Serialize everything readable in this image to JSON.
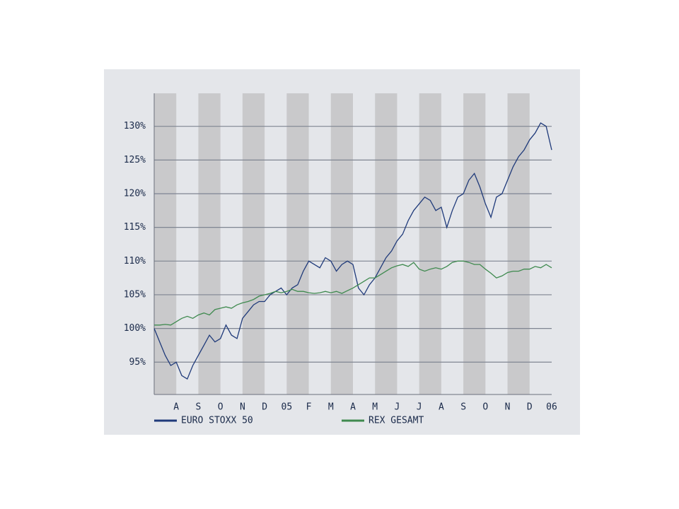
{
  "chart_data": {
    "type": "line",
    "categories": [
      null,
      null,
      null,
      null,
      "A",
      null,
      null,
      null,
      "S",
      null,
      null,
      null,
      "O",
      null,
      null,
      null,
      "N",
      null,
      null,
      null,
      "D",
      null,
      null,
      null,
      "05",
      null,
      null,
      null,
      "F",
      null,
      null,
      null,
      "M",
      null,
      null,
      null,
      "A",
      null,
      null,
      null,
      "M",
      null,
      null,
      null,
      "J",
      null,
      null,
      null,
      "J",
      null,
      null,
      null,
      "A",
      null,
      null,
      null,
      "S",
      null,
      null,
      null,
      "O",
      null,
      null,
      null,
      "N",
      null,
      null,
      null,
      "D",
      null,
      null,
      null,
      "06"
    ],
    "series": [
      {
        "name": "EURO STOXX 50",
        "color": "#1f3a7a",
        "values": [
          100,
          98,
          96,
          94.5,
          95,
          93,
          92.5,
          94.5,
          96,
          97.5,
          99,
          98,
          98.5,
          100.5,
          99,
          98.5,
          101.5,
          102.5,
          103.5,
          104,
          104,
          105,
          105.5,
          106,
          105,
          106,
          106.5,
          108.5,
          110,
          109.5,
          109,
          110.5,
          110,
          108.5,
          109.5,
          110,
          109.5,
          106,
          105,
          106.5,
          107.5,
          109,
          110.5,
          111.5,
          113,
          114,
          116,
          117.5,
          118.5,
          119.5,
          119,
          117.5,
          118,
          115,
          117.5,
          119.5,
          120,
          122,
          123,
          121,
          118.5,
          116.5,
          119.5,
          120,
          122,
          124,
          125.5,
          126.5,
          128,
          129,
          130.5,
          130,
          126.5
        ]
      },
      {
        "name": "REX GESAMT",
        "color": "#3f8a4f",
        "values": [
          100.5,
          100.5,
          100.6,
          100.5,
          101,
          101.5,
          101.8,
          101.5,
          102,
          102.3,
          102,
          102.8,
          103,
          103.2,
          103,
          103.5,
          103.8,
          104,
          104.3,
          104.8,
          105,
          105.2,
          105.5,
          105.3,
          105.5,
          105.8,
          105.5,
          105.5,
          105.3,
          105.2,
          105.3,
          105.5,
          105.3,
          105.5,
          105.2,
          105.6,
          106,
          106.5,
          107,
          107.5,
          107.5,
          108,
          108.5,
          109,
          109.3,
          109.5,
          109.2,
          109.8,
          108.8,
          108.5,
          108.8,
          109,
          108.8,
          109.2,
          109.8,
          110,
          110,
          109.8,
          109.5,
          109.5,
          108.8,
          108.2,
          107.5,
          107.8,
          108.3,
          108.5,
          108.5,
          108.8,
          108.8,
          109.2,
          109,
          109.5,
          109
        ]
      }
    ],
    "ylim": [
      90.2,
      134.9
    ],
    "yticks": [
      {
        "value": 95,
        "label": "95%"
      },
      {
        "value": 100,
        "label": "100%"
      },
      {
        "value": 105,
        "label": "105%"
      },
      {
        "value": 110,
        "label": "110%"
      },
      {
        "value": 115,
        "label": "115%"
      },
      {
        "value": 120,
        "label": "120%"
      },
      {
        "value": 125,
        "label": "125%"
      },
      {
        "value": 130,
        "label": "130%"
      }
    ],
    "grid": true
  }
}
